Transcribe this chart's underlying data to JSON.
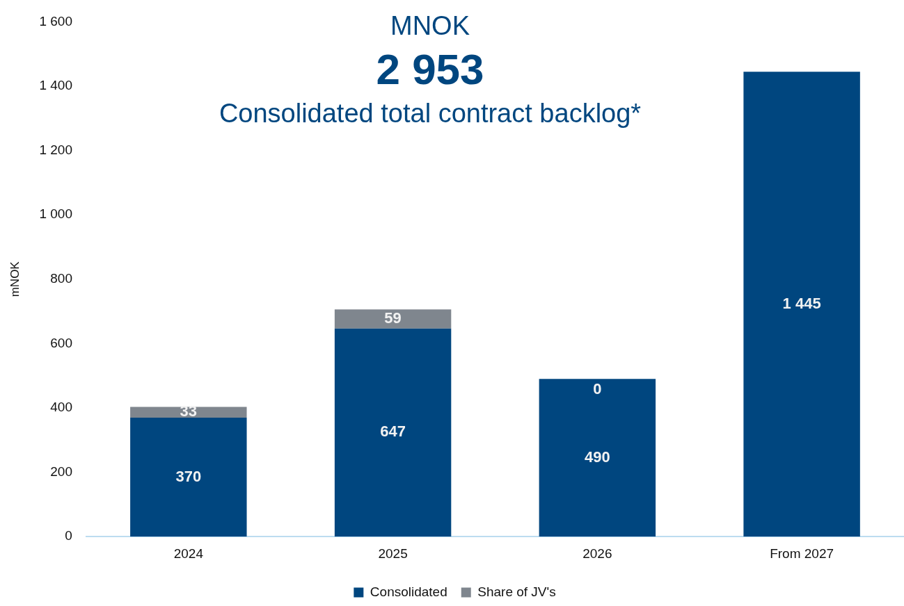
{
  "chart_data": {
    "type": "bar",
    "stacked": true,
    "title": "Consolidated total contract backlog*",
    "annotations": [
      "MNOK",
      "2 953"
    ],
    "ylabel": "mNOK",
    "categories": [
      "2024",
      "2025",
      "2026",
      "From 2027"
    ],
    "series": [
      {
        "name": "Consolidated",
        "color": "#00467f",
        "values": [
          370,
          647,
          490,
          1445
        ],
        "value_labels": [
          "370",
          "647",
          "490",
          "1 445"
        ]
      },
      {
        "name": "Share of JV's",
        "color": "#7f868e",
        "values": [
          33,
          59,
          0,
          null
        ],
        "value_labels": [
          "33",
          "59",
          "0",
          null
        ]
      }
    ],
    "ylim": [
      0,
      1600
    ],
    "yticks": [
      0,
      200,
      400,
      600,
      800,
      {
        "value": 1000,
        "label": "1 000"
      },
      {
        "value": 1200,
        "label": "1 200"
      },
      {
        "value": 1400,
        "label": "1 400"
      },
      {
        "value": 1600,
        "label": "1 600"
      }
    ],
    "grid": false,
    "legend": "bottom"
  }
}
